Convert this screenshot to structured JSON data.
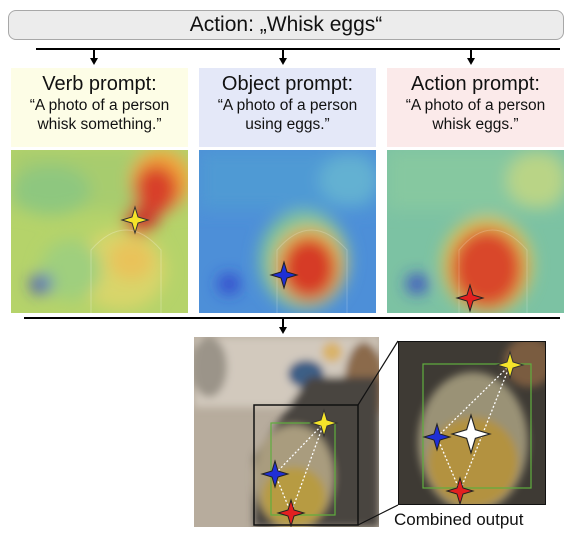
{
  "header": {
    "action_label": "Action: „Whisk eggs“"
  },
  "prompts": [
    {
      "title": "Verb prompt:",
      "line1": "“A photo of a person",
      "line2": "whisk something.”",
      "bg": "#fdfde6"
    },
    {
      "title": "Object prompt:",
      "line1": "“A photo of a person",
      "line2": "using eggs.”",
      "bg": "#e4e8f8"
    },
    {
      "title": "Action prompt:",
      "line1": "“A photo of a person",
      "line2": "whisk eggs.”",
      "bg": "#fbeaea"
    }
  ],
  "markers": {
    "verb_color": "#f5e42a",
    "object_color": "#1f2fd6",
    "action_color": "#e32020",
    "combined_color": "#ffffff"
  },
  "output": {
    "caption": "Combined output"
  }
}
